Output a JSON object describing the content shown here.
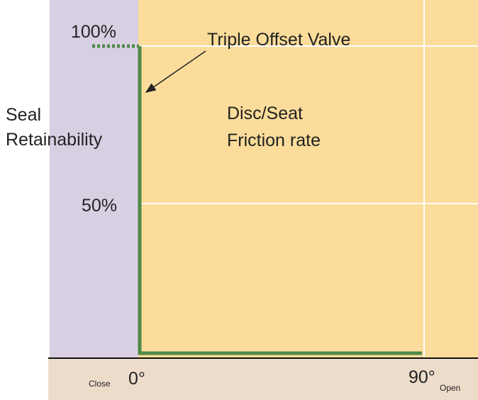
{
  "y_axis": {
    "title_line1": "Seal",
    "title_line2": "Retainability",
    "tick_top": "100%",
    "tick_mid": "50%"
  },
  "x_axis": {
    "start_note": "Close",
    "start": "0°",
    "end": "90°",
    "end_note": "Open"
  },
  "annotation": "Triple Offset Valve",
  "region_label": {
    "line1": "Disc/Seat",
    "line2": "Friction rate"
  }
}
